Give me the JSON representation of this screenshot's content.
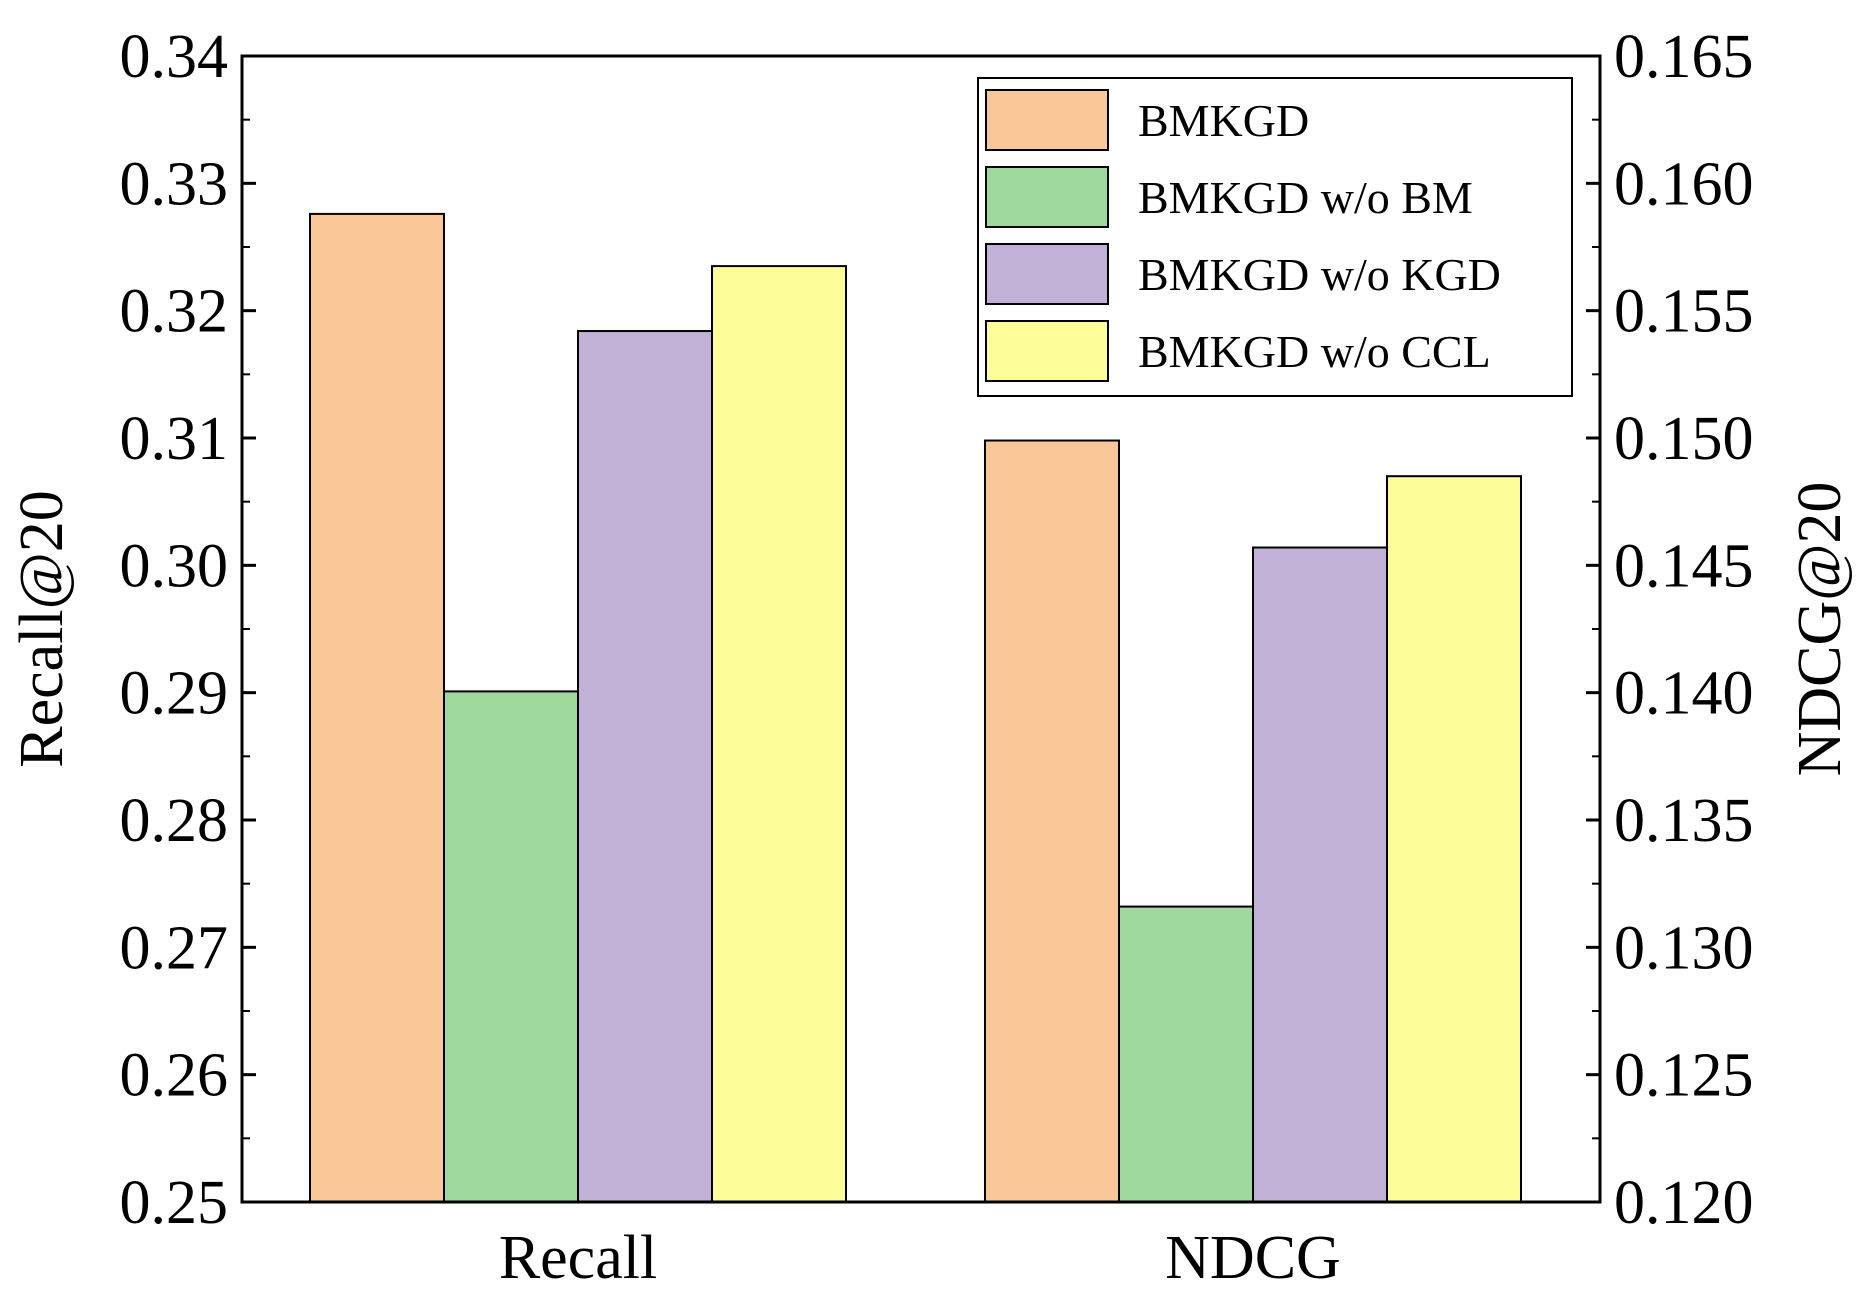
{
  "chart_data": {
    "type": "bar",
    "title": "",
    "categories": [
      "Recall",
      "NDCG"
    ],
    "left_axis": {
      "label": "Recall@20",
      "ylim": [
        0.25,
        0.34
      ],
      "ticks": [
        "0.25",
        "0.26",
        "0.27",
        "0.28",
        "0.29",
        "0.30",
        "0.31",
        "0.32",
        "0.33",
        "0.34"
      ]
    },
    "right_axis": {
      "label": "NDCG@20",
      "ylim": [
        0.12,
        0.165
      ],
      "ticks": [
        "0.120",
        "0.125",
        "0.130",
        "0.135",
        "0.140",
        "0.145",
        "0.150",
        "0.155",
        "0.160",
        "0.165"
      ]
    },
    "axis_for_category": [
      "left",
      "right"
    ],
    "series": [
      {
        "name": "BMKGD",
        "color": "#FAC898",
        "values": [
          0.3276,
          0.1499
        ]
      },
      {
        "name": "BMKGD w/o BM",
        "color": "#A0D99E",
        "values": [
          0.2901,
          0.1316
        ]
      },
      {
        "name": "BMKGD w/o KGD",
        "color": "#C2B1D6",
        "values": [
          0.3184,
          0.1457
        ]
      },
      {
        "name": "BMKGD w/o CCL",
        "color": "#FDFD9A",
        "values": [
          0.3235,
          0.1485
        ]
      }
    ],
    "legend": {
      "placement": "top-right"
    },
    "grid": false
  }
}
